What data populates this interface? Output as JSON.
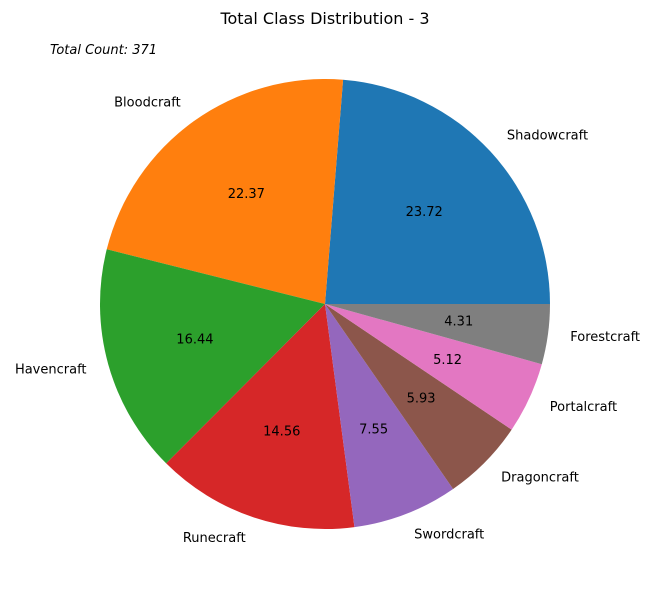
{
  "chart_data": {
    "type": "pie",
    "title": "Total Class Distribution - 3",
    "annotation": "Total Count: 371",
    "categories": [
      "Shadowcraft",
      "Bloodcraft",
      "Havencraft",
      "Runecraft",
      "Swordcraft",
      "Dragoncraft",
      "Portalcraft",
      "Forestcraft"
    ],
    "values": [
      23.72,
      22.37,
      16.44,
      14.56,
      7.55,
      5.93,
      5.12,
      4.31
    ],
    "value_labels": [
      "23.72",
      "22.37",
      "16.44",
      "14.56",
      "7.55",
      "5.93",
      "5.12",
      "4.31"
    ],
    "colors": [
      "#1f77b4",
      "#ff7f0e",
      "#2ca02c",
      "#d62728",
      "#9467bd",
      "#8c564b",
      "#e377c2",
      "#7f7f7f"
    ],
    "start_angle_deg": 0,
    "direction": "counterclockwise",
    "legend": "none"
  }
}
